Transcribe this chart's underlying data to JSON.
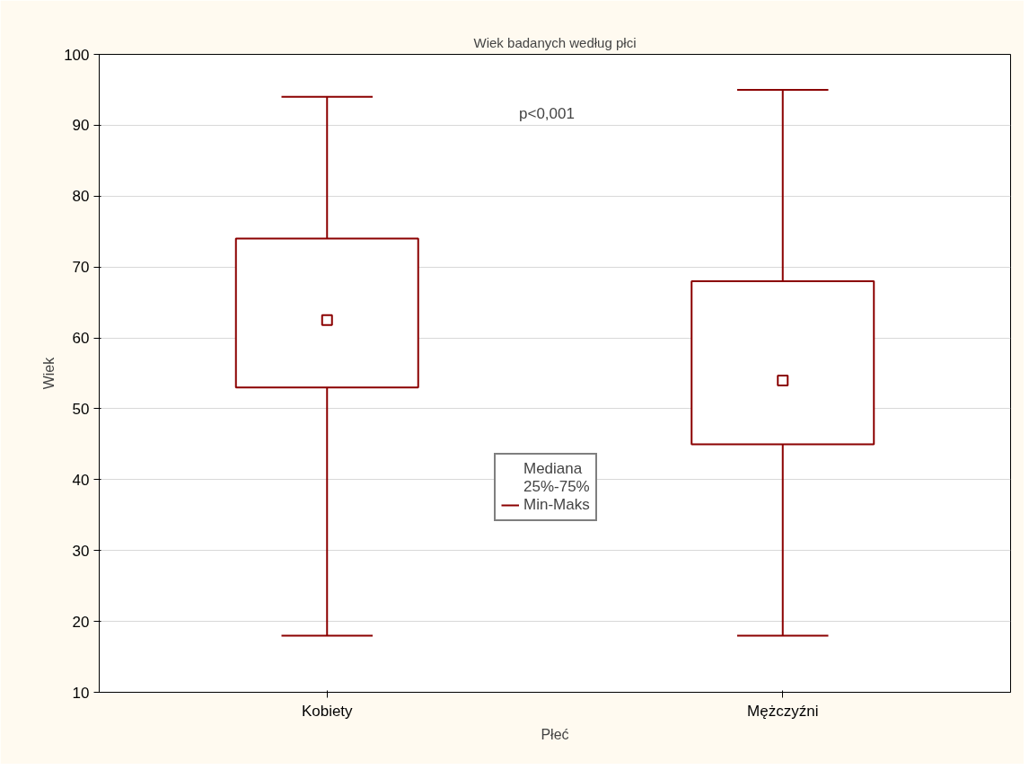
{
  "chart_data": {
    "type": "box",
    "title": "Wiek badanych według płci",
    "xlabel": "Płeć",
    "ylabel": "Wiek",
    "categories": [
      "Kobiety",
      "Mężczyźni"
    ],
    "series": [
      {
        "color": "#8b0000",
        "boxes": [
          {
            "low": 18,
            "q1": 53,
            "median": 62.5,
            "q3": 74,
            "high": 94
          },
          {
            "low": 18,
            "q1": 45,
            "median": 54,
            "q3": 68,
            "high": 95
          }
        ]
      }
    ],
    "ylim": [
      10,
      100
    ],
    "yticks": [
      10,
      20,
      30,
      40,
      50,
      60,
      70,
      80,
      90,
      100
    ],
    "grid": "y",
    "marker": "square",
    "annotations": [
      "p<0,001",
      "Mediana",
      "25%-75%",
      "Min-Maks"
    ]
  }
}
